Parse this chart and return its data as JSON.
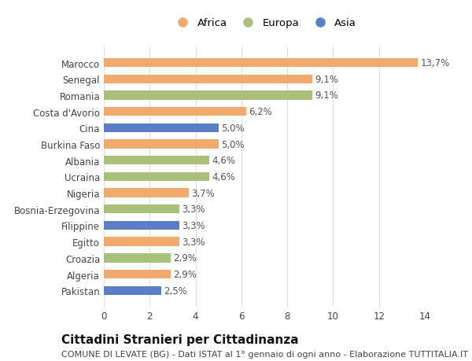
{
  "categories": [
    "Pakistan",
    "Algeria",
    "Croazia",
    "Egitto",
    "Filippine",
    "Bosnia-Erzegovina",
    "Nigeria",
    "Ucraina",
    "Albania",
    "Burkina Faso",
    "Cina",
    "Costa d'Avorio",
    "Romania",
    "Senegal",
    "Marocco"
  ],
  "values": [
    2.5,
    2.9,
    2.9,
    3.3,
    3.3,
    3.3,
    3.7,
    4.6,
    4.6,
    5.0,
    5.0,
    6.2,
    9.1,
    9.1,
    13.7
  ],
  "labels": [
    "2,5%",
    "2,9%",
    "2,9%",
    "3,3%",
    "3,3%",
    "3,3%",
    "3,7%",
    "4,6%",
    "4,6%",
    "5,0%",
    "5,0%",
    "6,2%",
    "9,1%",
    "9,1%",
    "13,7%"
  ],
  "colors": [
    "#5b7ec9",
    "#f2a96e",
    "#a8c07a",
    "#f2a96e",
    "#5b7ec9",
    "#a8c07a",
    "#f2a96e",
    "#a8c07a",
    "#a8c07a",
    "#f2a96e",
    "#5b7ec9",
    "#f2a96e",
    "#a8c07a",
    "#f2a96e",
    "#f2a96e"
  ],
  "continent": [
    "Asia",
    "Africa",
    "Europa",
    "Africa",
    "Asia",
    "Europa",
    "Africa",
    "Europa",
    "Europa",
    "Africa",
    "Asia",
    "Africa",
    "Europa",
    "Africa",
    "Africa"
  ],
  "legend_labels": [
    "Africa",
    "Europa",
    "Asia"
  ],
  "legend_colors": [
    "#f2a96e",
    "#a8c07a",
    "#5b7ec9"
  ],
  "title": "Cittadini Stranieri per Cittadinanza",
  "subtitle": "COMUNE DI LEVATE (BG) - Dati ISTAT al 1° gennaio di ogni anno - Elaborazione TUTTITALIA.IT",
  "xlim": [
    0,
    14
  ],
  "xticks": [
    0,
    2,
    4,
    6,
    8,
    10,
    12,
    14
  ],
  "background_color": "#ffffff",
  "bar_height": 0.55,
  "title_fontsize": 11,
  "subtitle_fontsize": 8,
  "label_fontsize": 8.5,
  "tick_fontsize": 8.5,
  "legend_fontsize": 9.5
}
